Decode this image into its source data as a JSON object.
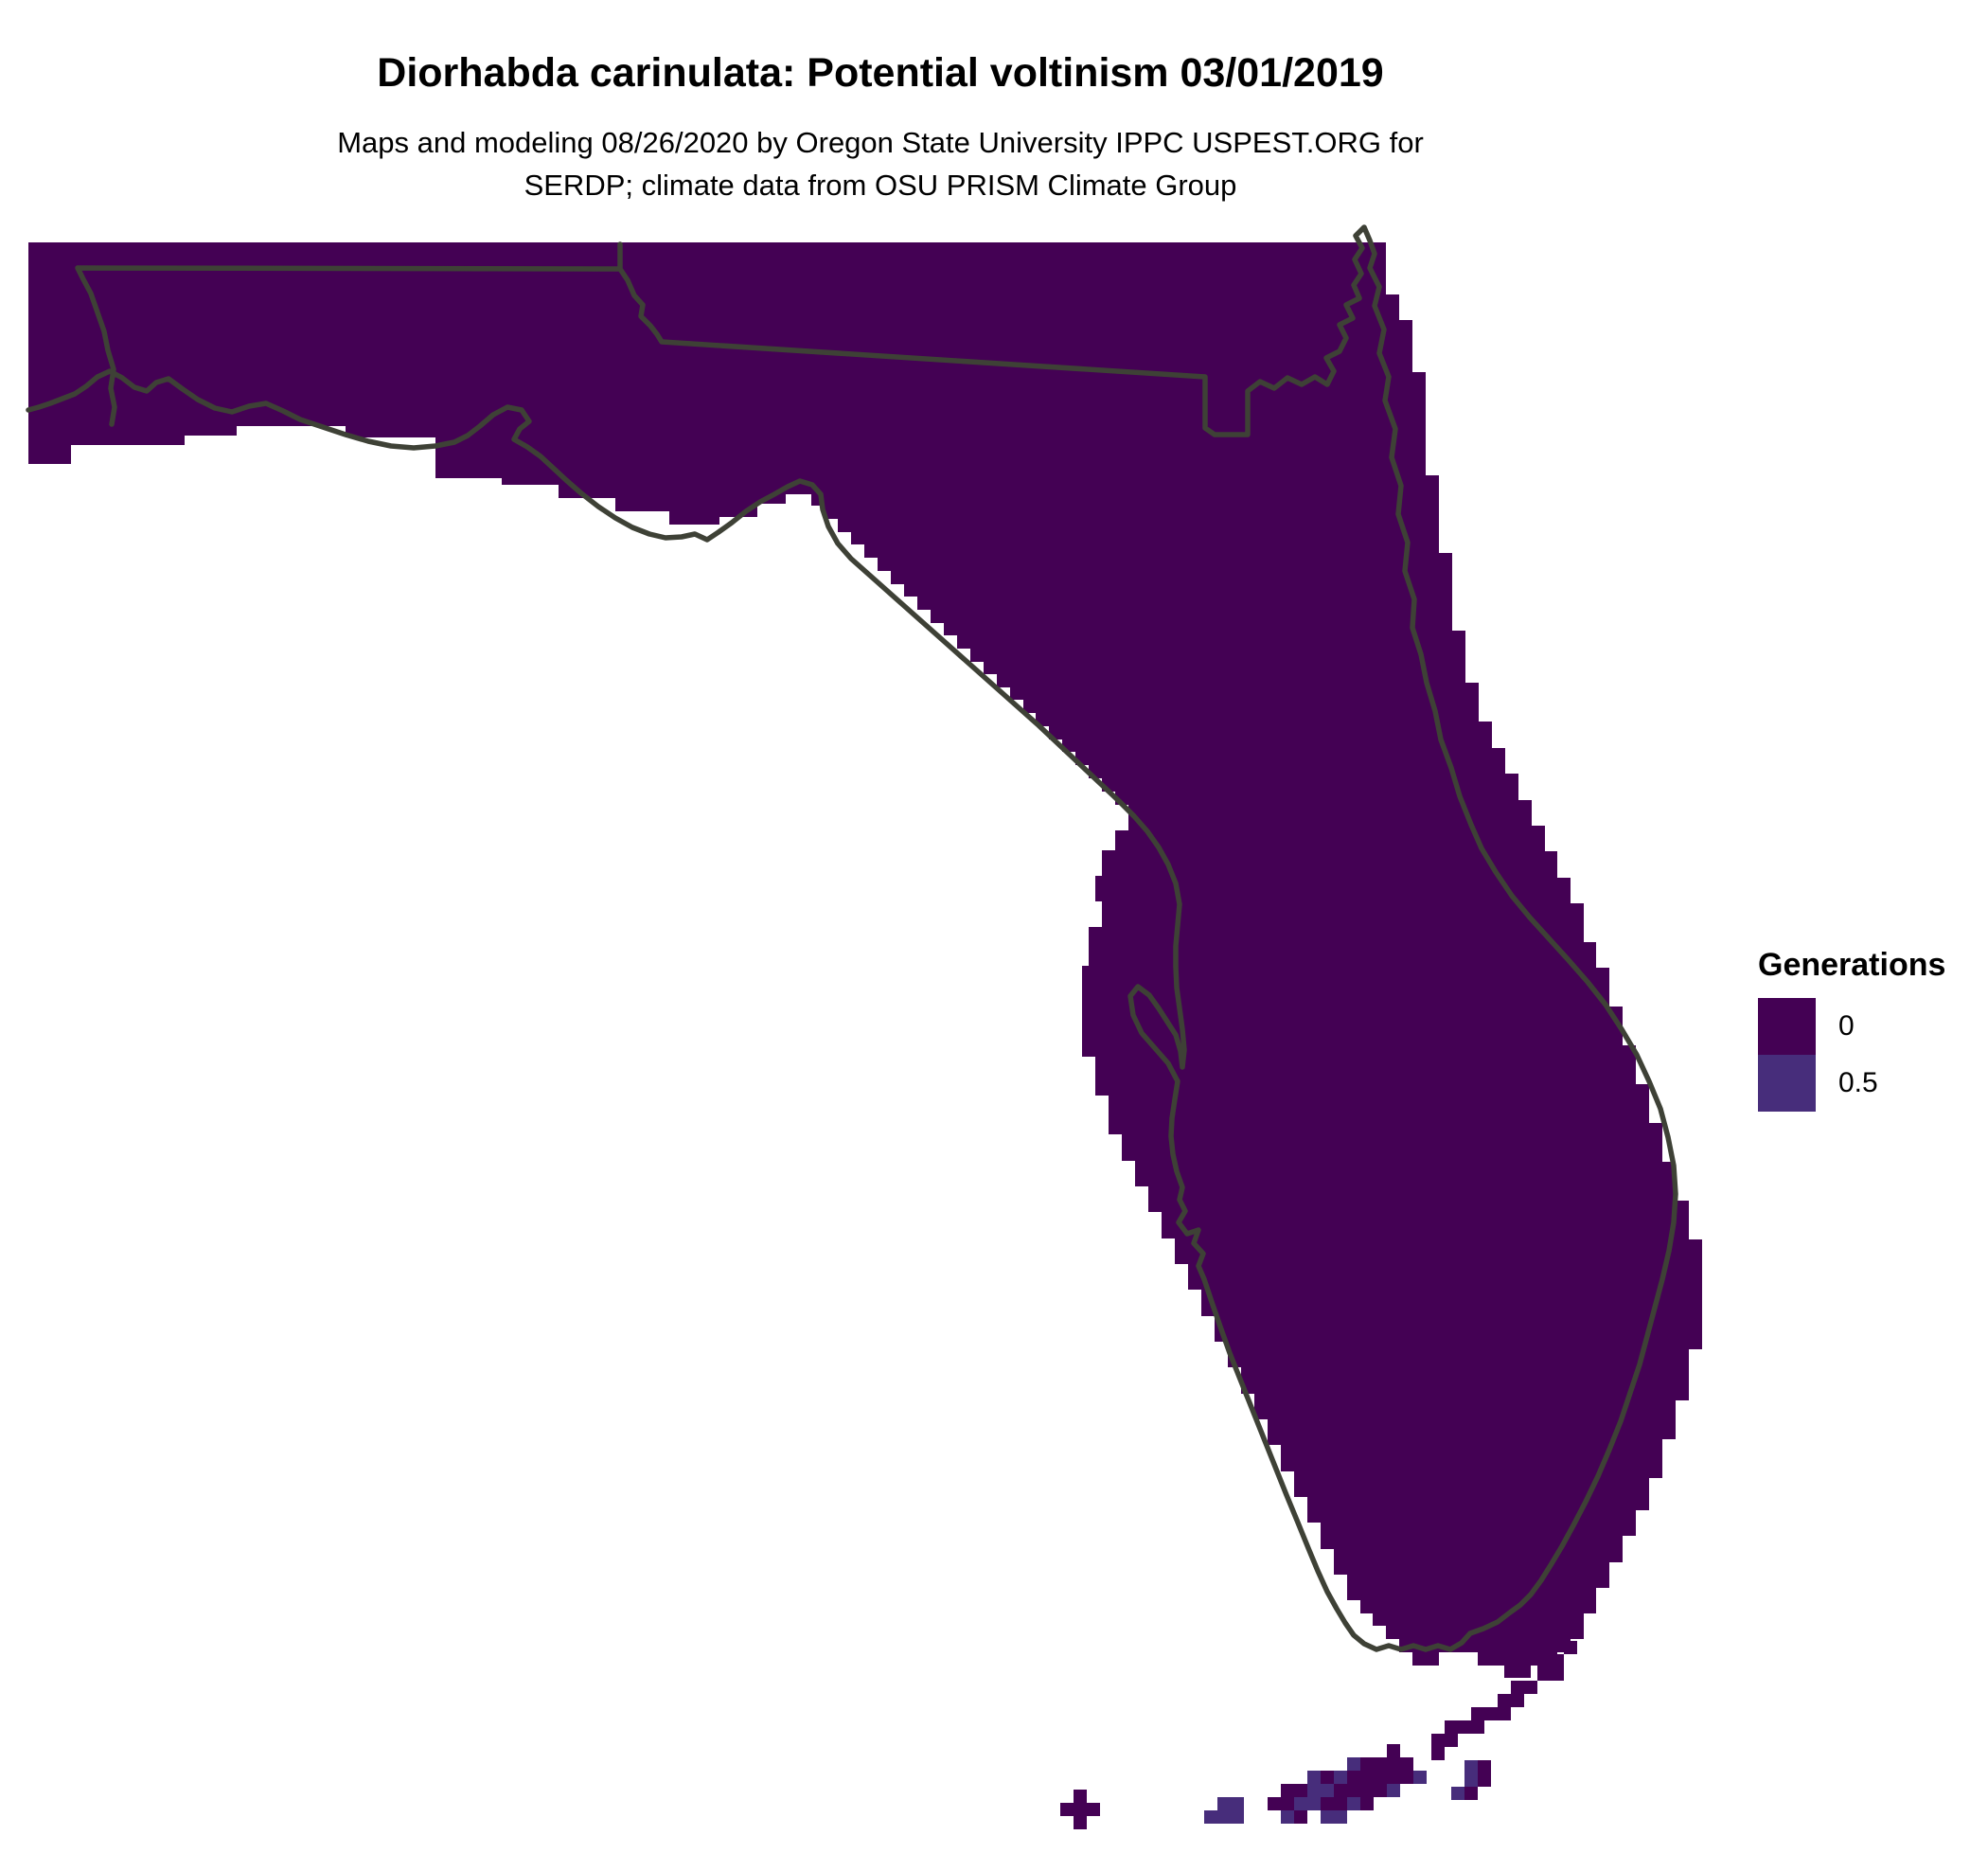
{
  "header": {
    "title": "Diorhabda carinulata: Potential voltinism 03/01/2019",
    "subtitle_line1": "Maps and modeling 08/26/2020 by Oregon State University IPPC USPEST.ORG for",
    "subtitle_line2": "SERDP; climate data from OSU PRISM Climate Group"
  },
  "legend": {
    "title": "Generations",
    "items": [
      {
        "label": "0",
        "value": 0,
        "color": "#440154"
      },
      {
        "label": "0.5",
        "value": 0.5,
        "color": "#472D7B"
      }
    ]
  },
  "map": {
    "region": "Florida, USA",
    "projection_note": "gridded raster of modeled generations, all mainland cells = 0",
    "background_color": "#FFFFFF",
    "land_color": "#440154",
    "half_generation_color": "#472D7B",
    "boundary_color": "#3E4136",
    "cell_size": 14,
    "keys_cells": [
      [
        1134,
        1890
      ],
      [
        1120,
        1904
      ],
      [
        1134,
        1904
      ],
      [
        1148,
        1904
      ],
      [
        1134,
        1918
      ],
      [
        1286,
        1898,
        0.5
      ],
      [
        1300,
        1898,
        0.5
      ],
      [
        1272,
        1912,
        0.5
      ],
      [
        1286,
        1912,
        0.5
      ],
      [
        1300,
        1912,
        0.5
      ],
      [
        1465,
        1842
      ],
      [
        1423,
        1856,
        0.5
      ],
      [
        1437,
        1856
      ],
      [
        1451,
        1856
      ],
      [
        1465,
        1856
      ],
      [
        1479,
        1856
      ],
      [
        1381,
        1870,
        0.5
      ],
      [
        1395,
        1870
      ],
      [
        1409,
        1870,
        0.5
      ],
      [
        1423,
        1870
      ],
      [
        1437,
        1870
      ],
      [
        1451,
        1870
      ],
      [
        1465,
        1870
      ],
      [
        1479,
        1870
      ],
      [
        1493,
        1870,
        0.5
      ],
      [
        1353,
        1884
      ],
      [
        1367,
        1884
      ],
      [
        1381,
        1884,
        0.5
      ],
      [
        1395,
        1884,
        0.5
      ],
      [
        1409,
        1884
      ],
      [
        1423,
        1884
      ],
      [
        1437,
        1884
      ],
      [
        1451,
        1884
      ],
      [
        1465,
        1884,
        0.5
      ],
      [
        1339,
        1898
      ],
      [
        1353,
        1898
      ],
      [
        1367,
        1898,
        0.5
      ],
      [
        1381,
        1898,
        0.5
      ],
      [
        1395,
        1898
      ],
      [
        1409,
        1898
      ],
      [
        1423,
        1898,
        0.5
      ],
      [
        1437,
        1898
      ],
      [
        1353,
        1912,
        0.5
      ],
      [
        1367,
        1912
      ],
      [
        1395,
        1912,
        0.5
      ],
      [
        1409,
        1912,
        0.5
      ],
      [
        1652,
        1733
      ],
      [
        1638,
        1747
      ],
      [
        1624,
        1747
      ],
      [
        1638,
        1761
      ],
      [
        1624,
        1761
      ],
      [
        1610,
        1775
      ],
      [
        1596,
        1775
      ],
      [
        1596,
        1789
      ],
      [
        1582,
        1789
      ],
      [
        1582,
        1803
      ],
      [
        1568,
        1803
      ],
      [
        1554,
        1803
      ],
      [
        1554,
        1817
      ],
      [
        1540,
        1817
      ],
      [
        1526,
        1817
      ],
      [
        1526,
        1831
      ],
      [
        1512,
        1831
      ],
      [
        1512,
        1845
      ],
      [
        1561,
        1859
      ],
      [
        1547,
        1859,
        0.5
      ],
      [
        1561,
        1873
      ],
      [
        1547,
        1873,
        0.5
      ],
      [
        1533,
        1887,
        0.5
      ],
      [
        1547,
        1887
      ]
    ]
  }
}
